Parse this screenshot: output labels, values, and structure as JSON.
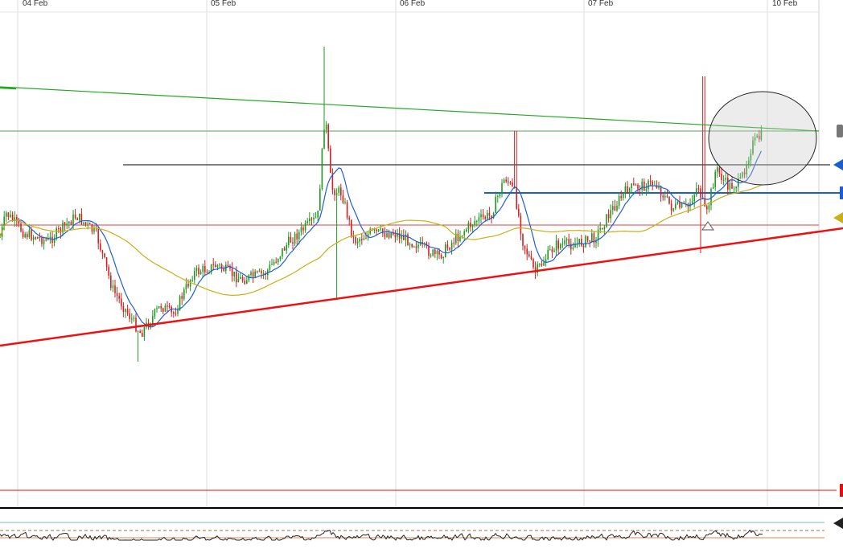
{
  "chart_data": {
    "type": "candlestick",
    "x_labels": [
      "04 Feb",
      "05 Feb",
      "06 Feb",
      "07 Feb",
      "10 Feb"
    ],
    "grid": true,
    "colors": {
      "up": "#1e9a1e",
      "down": "#d42020",
      "ma_fast": "#1e5fd6",
      "ma_slow": "#c8b016",
      "rising_support": "#ee1111",
      "falling_resistance": "#22aa22",
      "horizontal_level_black": "#000000",
      "horizontal_level_blue": "#1a5fd0",
      "horizontal_level_red": "#e04040",
      "horizontal_level_green": "#5aa05a",
      "oscillator_line": "#222222"
    },
    "price_scale_markers": [
      {
        "level": "green-line",
        "color": "#777777"
      },
      {
        "level": "black-line",
        "color": "#1a5fd0"
      },
      {
        "level": "blue-line",
        "color": "#1a5fd0"
      },
      {
        "level": "ma-slow",
        "color": "#c8b016"
      },
      {
        "level": "bottom-red-line",
        "color": "#e01010"
      }
    ],
    "annotations": [
      {
        "type": "ellipse",
        "label": "",
        "note": "highlighted area near latest candles"
      },
      {
        "type": "triangle-marker",
        "label": ""
      }
    ],
    "oscillator_panel": {
      "type": "line",
      "reference_lines": [
        "upper",
        "lower"
      ]
    }
  }
}
